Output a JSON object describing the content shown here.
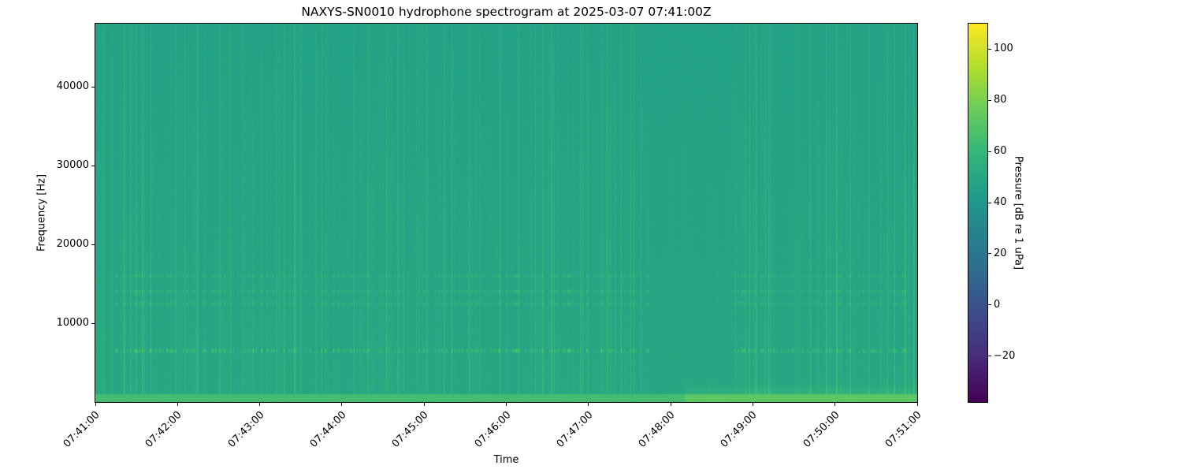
{
  "chart_data": {
    "type": "heatmap",
    "title": "NAXYS-SN0010 hydrophone spectrogram at 2025-03-07 07:41:00Z",
    "xlabel": "Time",
    "ylabel": "Frequency [Hz]",
    "colorbar_label": "Pressure [dB re 1 uPa]",
    "colormap": "viridis",
    "xlim": [
      "07:41:00",
      "07:51:00"
    ],
    "ylim": [
      0,
      48000
    ],
    "clim": [
      -38,
      110
    ],
    "x_ticks": [
      "07:41:00",
      "07:42:00",
      "07:43:00",
      "07:44:00",
      "07:45:00",
      "07:46:00",
      "07:47:00",
      "07:48:00",
      "07:49:00",
      "07:50:00",
      "07:51:00"
    ],
    "y_ticks": [
      10000,
      20000,
      30000,
      40000
    ],
    "colorbar_ticks": [
      -20,
      0,
      20,
      40,
      60,
      80,
      100
    ],
    "background_level_db": 50,
    "tonal_bands_hz": [
      6500,
      12500,
      14000,
      16000
    ],
    "tonal_band_level_db": 70,
    "low_frequency_band": {
      "max_hz": 1000,
      "level_db": 65,
      "elevated_after": "07:48:10",
      "elevated_level_db": 72
    },
    "quiet_interval": [
      "07:47:45",
      "07:48:45"
    ],
    "grid": false
  }
}
